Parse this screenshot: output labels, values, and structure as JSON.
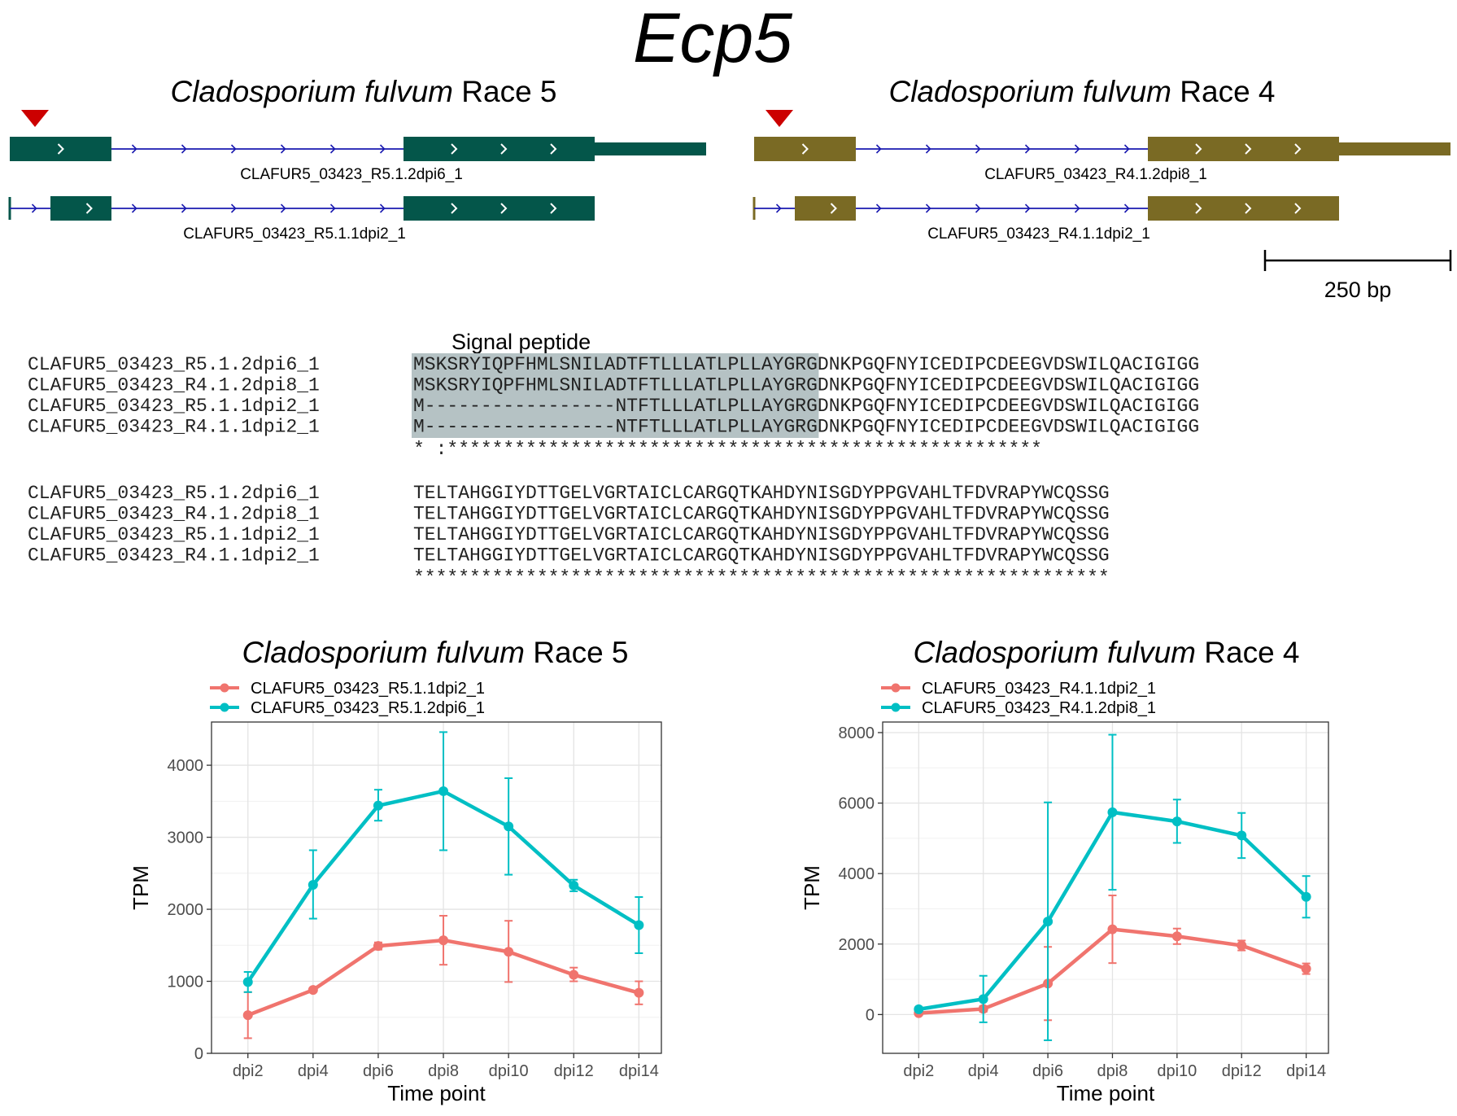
{
  "title": "Ecp5",
  "gene_models": {
    "panels": [
      {
        "species": "Cladosporium fulvum",
        "race": "Race 5",
        "color": "#04564A",
        "transcripts": [
          "CLAFUR5_03423_R5.1.2dpi6_1",
          "CLAFUR5_03423_R5.1.1dpi2_1"
        ]
      },
      {
        "species": "Cladosporium fulvum",
        "race": "Race 4",
        "color": "#7A6A24",
        "transcripts": [
          "CLAFUR5_03423_R4.1.2dpi8_1",
          "CLAFUR5_03423_R4.1.1dpi2_1"
        ]
      }
    ],
    "marker_color": "#CC0000",
    "intron_color": "#1A1AB0",
    "scale_label": "250 bp"
  },
  "alignment": {
    "signal_peptide_label": "Signal peptide",
    "highlight_color": "#B5C2C4",
    "blocks": [
      {
        "names": [
          "CLAFUR5_03423_R5.1.2dpi6_1",
          "CLAFUR5_03423_R4.1.2dpi8_1",
          "CLAFUR5_03423_R5.1.1dpi2_1",
          "CLAFUR5_03423_R4.1.1dpi2_1"
        ],
        "hl": [
          "MSKSRYIQPFHMLSNILADTFTLLLATLPLLAYG",
          "MSKSRYIQPFHMLSNILADTFTLLLATLPLLAYG",
          "M-----------------NTFTLLLATLPLLAYG",
          "M-----------------NTFTLLLATLPLLAYG"
        ],
        "rest": [
          "RGDNKPGQFNYICEDIPCDEEGVDSWILQACIGIGG",
          "RGDNKPGQFNYICEDIPCDEEGVDSWILQACIGIGG",
          "RGDNKPGQFNYICEDIPCDEEGVDSWILQACIGIGG",
          "RGDNKPGQFNYICEDIPCDEEGVDSWILQACIGIGG"
        ],
        "consensus": "*                 :*****************************************************"
      },
      {
        "names": [
          "CLAFUR5_03423_R5.1.2dpi6_1",
          "CLAFUR5_03423_R4.1.2dpi8_1",
          "CLAFUR5_03423_R5.1.1dpi2_1",
          "CLAFUR5_03423_R4.1.1dpi2_1"
        ],
        "hl": [
          "",
          "",
          "",
          ""
        ],
        "rest": [
          "TELTAHGGIYDTTGELVGRTAICLCARGQTKAHDYNISGDYPPGVAHLTFDVRAPYWCQSSG",
          "TELTAHGGIYDTTGELVGRTAICLCARGQTKAHDYNISGDYPPGVAHLTFDVRAPYWCQSSG",
          "TELTAHGGIYDTTGELVGRTAICLCARGQTKAHDYNISGDYPPGVAHLTFDVRAPYWCQSSG",
          "TELTAHGGIYDTTGELVGRTAICLCARGQTKAHDYNISGDYPPGVAHLTFDVRAPYWCQSSG"
        ],
        "consensus": "**************************************************************"
      }
    ]
  },
  "chart_data": [
    {
      "type": "line",
      "title_species": "Cladosporium fulvum",
      "title_race": "Race 5",
      "xlabel": "Time point",
      "ylabel": "TPM",
      "categories": [
        "dpi2",
        "dpi4",
        "dpi6",
        "dpi8",
        "dpi10",
        "dpi12",
        "dpi14"
      ],
      "ylim": [
        0,
        4600
      ],
      "yticks": [
        0,
        1000,
        2000,
        3000,
        4000
      ],
      "grid": true,
      "legend_position": "top",
      "series": [
        {
          "name": "CLAFUR5_03423_R5.1.1dpi2_1",
          "color": "#F0746E",
          "values": [
            530,
            880,
            1490,
            1570,
            1410,
            1090,
            840
          ],
          "err_low": [
            210,
            860,
            1440,
            1230,
            990,
            1000,
            680
          ],
          "err_high": [
            850,
            900,
            1540,
            1910,
            1840,
            1190,
            1000
          ]
        },
        {
          "name": "CLAFUR5_03423_R5.1.2dpi6_1",
          "color": "#00BFC4",
          "values": [
            990,
            2340,
            3440,
            3640,
            3150,
            2330,
            1780
          ],
          "err_low": [
            850,
            1870,
            3230,
            2820,
            2480,
            2250,
            1390
          ],
          "err_high": [
            1130,
            2820,
            3660,
            4460,
            3820,
            2410,
            2170
          ]
        }
      ]
    },
    {
      "type": "line",
      "title_species": "Cladosporium fulvum",
      "title_race": "Race 4",
      "xlabel": "Time point",
      "ylabel": "TPM",
      "categories": [
        "dpi2",
        "dpi4",
        "dpi6",
        "dpi8",
        "dpi10",
        "dpi12",
        "dpi14"
      ],
      "ylim": [
        -1100,
        8300
      ],
      "yticks": [
        0,
        2000,
        4000,
        6000,
        8000
      ],
      "grid": true,
      "legend_position": "top",
      "series": [
        {
          "name": "CLAFUR5_03423_R4.1.1dpi2_1",
          "color": "#F0746E",
          "values": [
            40,
            160,
            880,
            2420,
            2220,
            1960,
            1300
          ],
          "err_low": [
            20,
            80,
            -160,
            1460,
            2000,
            1820,
            1150
          ],
          "err_high": [
            60,
            240,
            1920,
            3380,
            2440,
            2100,
            1450
          ]
        },
        {
          "name": "CLAFUR5_03423_R4.1.2dpi8_1",
          "color": "#00BFC4",
          "values": [
            150,
            440,
            2640,
            5740,
            5480,
            5080,
            3340
          ],
          "err_low": [
            100,
            -220,
            -730,
            3540,
            4870,
            4440,
            2750
          ],
          "err_high": [
            200,
            1100,
            6020,
            7940,
            6100,
            5720,
            3930
          ]
        }
      ]
    }
  ]
}
